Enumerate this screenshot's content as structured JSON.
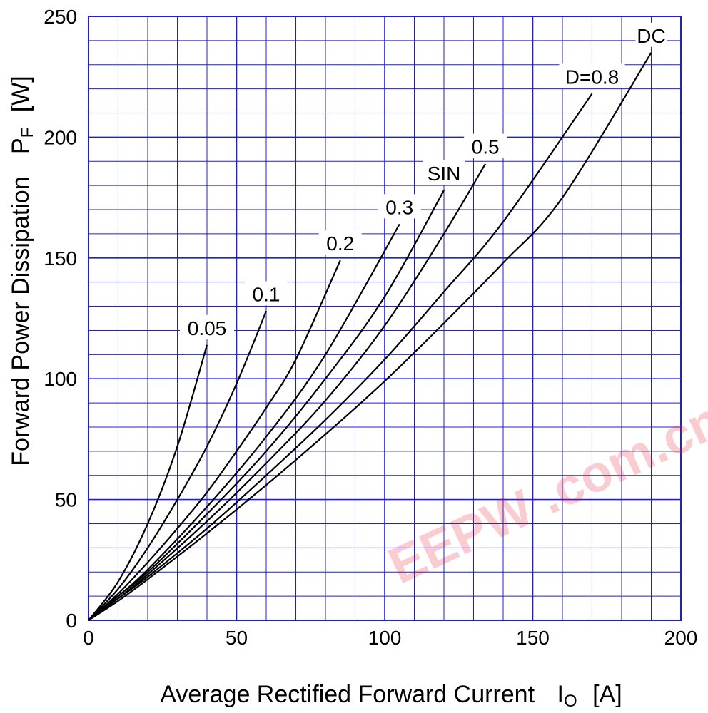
{
  "chart_data": {
    "type": "line",
    "title": "",
    "xlabel": "Average Rectified Forward Current",
    "xlabel_symbol": "I",
    "xlabel_sub": "O",
    "xlabel_unit": "[A]",
    "ylabel": "Forward Power Dissipation",
    "ylabel_symbol": "P",
    "ylabel_sub": "F",
    "ylabel_unit": "[W]",
    "xlim": [
      0,
      200
    ],
    "ylim": [
      0,
      250
    ],
    "x_ticks": [
      0,
      50,
      100,
      150,
      200
    ],
    "y_ticks": [
      0,
      50,
      100,
      150,
      200,
      250
    ],
    "x_minor_step": 10,
    "y_minor_step": 10,
    "grid": true,
    "grid_color": "#1f1fcf",
    "line_color": "#000000",
    "watermark": "EEPW .com.cn 电子产品世界",
    "watermark_color": "#e8202a",
    "series": [
      {
        "name": "0.05",
        "x": [
          0,
          10,
          20,
          30,
          40
        ],
        "y": [
          0,
          16,
          40,
          72,
          114
        ]
      },
      {
        "name": "0.1",
        "x": [
          0,
          10,
          20,
          30,
          40,
          50,
          60
        ],
        "y": [
          0,
          13,
          30,
          50,
          72,
          98,
          128
        ]
      },
      {
        "name": "0.2",
        "x": [
          0,
          10,
          20,
          30,
          40,
          50,
          60,
          70,
          85
        ],
        "y": [
          0,
          11,
          24,
          38,
          53,
          70,
          88,
          108,
          149
        ]
      },
      {
        "name": "0.3",
        "x": [
          0,
          10,
          20,
          40,
          60,
          80,
          105
        ],
        "y": [
          0,
          10,
          21,
          47,
          76,
          110,
          164
        ]
      },
      {
        "name": "SIN",
        "x": [
          0,
          10,
          20,
          40,
          60,
          80,
          100,
          120
        ],
        "y": [
          0,
          10,
          20,
          44,
          70,
          100,
          134,
          178
        ]
      },
      {
        "name": "0.5",
        "x": [
          0,
          10,
          20,
          40,
          60,
          80,
          100,
          120,
          134
        ],
        "y": [
          0,
          9,
          19,
          41,
          65,
          91,
          122,
          160,
          189
        ]
      },
      {
        "name": "D=0.8",
        "x": [
          0,
          10,
          20,
          40,
          60,
          80,
          100,
          120,
          140,
          170
        ],
        "y": [
          0,
          9,
          18,
          38,
          60,
          83,
          108,
          136,
          165,
          218
        ]
      },
      {
        "name": "DC",
        "x": [
          0,
          10,
          20,
          40,
          60,
          80,
          100,
          120,
          140,
          160,
          190
        ],
        "y": [
          0,
          8,
          17,
          36,
          56,
          77,
          99,
          123,
          148,
          175,
          235
        ]
      }
    ]
  }
}
